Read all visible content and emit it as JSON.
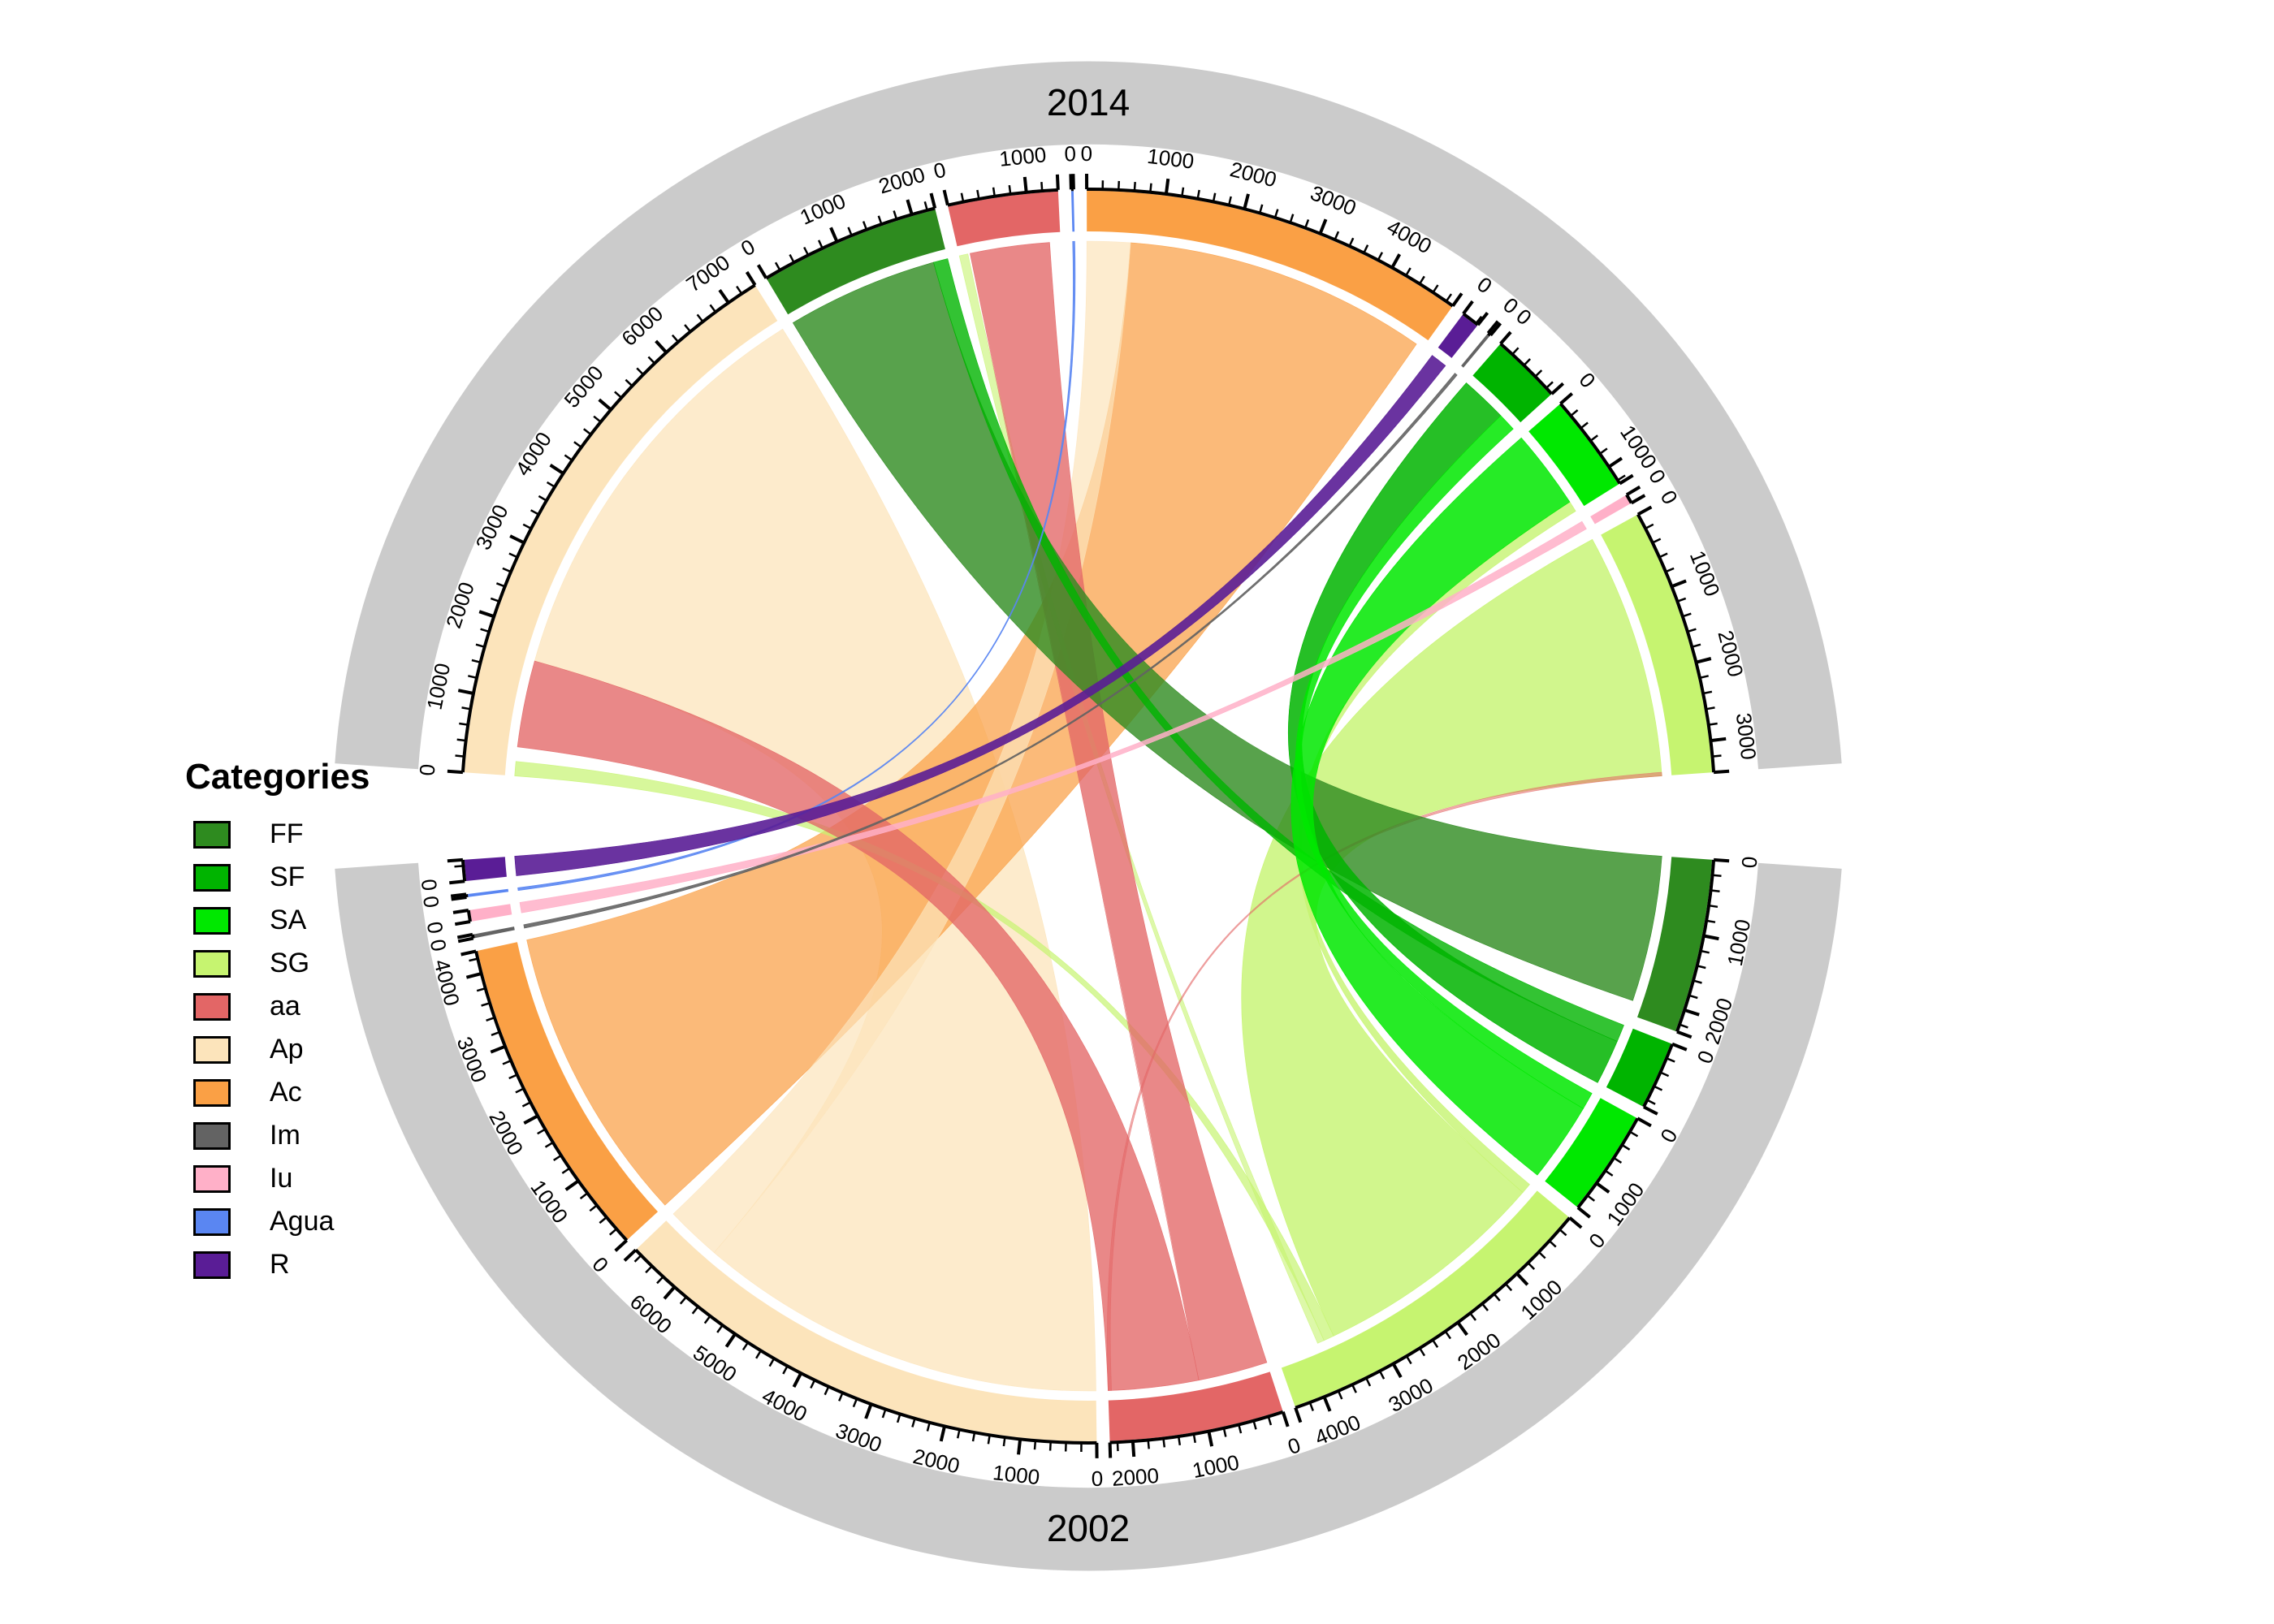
{
  "legend": {
    "title": "Categories",
    "items": [
      {
        "label": "FF",
        "color": "#2e8b1f"
      },
      {
        "label": "SF",
        "color": "#00b400"
      },
      {
        "label": "SA",
        "color": "#00e800"
      },
      {
        "label": "SG",
        "color": "#c6f470"
      },
      {
        "label": "aa",
        "color": "#e36666"
      },
      {
        "label": "Ap",
        "color": "#fce4bb"
      },
      {
        "label": "Ac",
        "color": "#faa045"
      },
      {
        "label": "Im",
        "color": "#636363"
      },
      {
        "label": "Iu",
        "color": "#ffb0c8"
      },
      {
        "label": "Agua",
        "color": "#5a86f2"
      },
      {
        "label": "R",
        "color": "#5a1d96"
      }
    ]
  },
  "chart_data": {
    "type": "chord",
    "description": "Land-cover transition chord diagram between year 2002 (bottom half) and year 2014 (top half)",
    "ring_color": "#cbcbcb",
    "axis_major_interval": 1000,
    "axis_minor_interval": 200,
    "colors": {
      "FF": "#2e8b1f",
      "SF": "#00b400",
      "SA": "#00e800",
      "SG": "#c6f470",
      "aa": "#e36666",
      "Ap": "#fce4bb",
      "Ac": "#faa045",
      "Im": "#636363",
      "Iu": "#ffb0c8",
      "Agua": "#5a86f2",
      "R": "#5a1d96"
    },
    "halves": {
      "2014": {
        "label": "2014",
        "sectors": [
          {
            "name": "Ap",
            "value": 7400
          },
          {
            "name": "FF",
            "value": 2300
          },
          {
            "name": "aa",
            "value": 1400
          },
          {
            "name": "Agua",
            "value": 30
          },
          {
            "name": "Ac",
            "value": 4900
          },
          {
            "name": "R",
            "value": 230
          },
          {
            "name": "Im",
            "value": 40
          },
          {
            "name": "SF",
            "value": 900
          },
          {
            "name": "SA",
            "value": 1250
          },
          {
            "name": "Iu",
            "value": 120
          },
          {
            "name": "SG",
            "value": 3400
          }
        ]
      },
      "2002": {
        "label": "2002",
        "sectors": [
          {
            "name": "FF",
            "value": 2300
          },
          {
            "name": "SF",
            "value": 900
          },
          {
            "name": "SA",
            "value": 1400
          },
          {
            "name": "SG",
            "value": 4400
          },
          {
            "name": "aa",
            "value": 2300
          },
          {
            "name": "Ap",
            "value": 6700
          },
          {
            "name": "Ac",
            "value": 4300
          },
          {
            "name": "Im",
            "value": 50
          },
          {
            "name": "Iu",
            "value": 150
          },
          {
            "name": "Agua",
            "value": 40
          },
          {
            "name": "R",
            "value": 280
          }
        ]
      }
    },
    "flows": [
      {
        "from": "Ap",
        "from_range": [
          0,
          5900
        ],
        "to": "Ap",
        "to_range": [
          1600,
          7400
        ],
        "opacity": 0.75
      },
      {
        "from": "Ac",
        "from_range": [
          0,
          4300
        ],
        "to": "Ac",
        "to_range": [
          600,
          4800
        ],
        "opacity": 0.72
      },
      {
        "from": "Ap",
        "from_range": [
          5900,
          6700
        ],
        "to": "Ac",
        "to_range": [
          0,
          600
        ],
        "opacity": 0.7
      },
      {
        "from": "SG",
        "from_range": [
          150,
          3550
        ],
        "to": "SG",
        "to_range": [
          0,
          3400
        ],
        "opacity": 0.8
      },
      {
        "from": "SG",
        "from_range": [
          0,
          150
        ],
        "to": "SA",
        "to_range": [
          1100,
          1250
        ],
        "opacity": 0.8
      },
      {
        "from": "SG",
        "from_range": [
          3550,
          3700
        ],
        "to": "Ap",
        "to_range": [
          0,
          200
        ],
        "opacity": 0.7
      },
      {
        "from": "SG",
        "from_range": [
          3700,
          3800
        ],
        "to": "aa",
        "to_range": [
          0,
          120
        ],
        "opacity": 0.6
      },
      {
        "from": "aa",
        "from_range": [
          1000,
          2300
        ],
        "to": "Ap",
        "to_range": [
          400,
          1600
        ],
        "opacity": 0.78
      },
      {
        "from": "aa",
        "from_range": [
          0,
          1000
        ],
        "to": "aa",
        "to_range": [
          150,
          1250
        ],
        "opacity": 0.78
      },
      {
        "from": "aa",
        "from_range": [
          2250,
          2300
        ],
        "to": "SG",
        "to_range": [
          3350,
          3400
        ],
        "opacity": 0.55
      },
      {
        "from": "FF",
        "from_range": [
          0,
          2100
        ],
        "to": "FF",
        "to_range": [
          0,
          2100
        ],
        "opacity": 0.8
      },
      {
        "from": "SF",
        "from_range": [
          0,
          250
        ],
        "to": "FF",
        "to_range": [
          2100,
          2300
        ],
        "opacity": 0.8
      },
      {
        "from": "SF",
        "from_range": [
          250,
          900
        ],
        "to": "SF",
        "to_range": [
          0,
          650
        ],
        "opacity": 0.85
      },
      {
        "from": "SA",
        "from_range": [
          0,
          250
        ],
        "to": "SF",
        "to_range": [
          650,
          900
        ],
        "opacity": 0.85
      },
      {
        "from": "SA",
        "from_range": [
          250,
          1400
        ],
        "to": "SA",
        "to_range": [
          0,
          1100
        ],
        "opacity": 0.85
      },
      {
        "from": "Iu",
        "from_range": [
          0,
          150
        ],
        "to": "Iu",
        "to_range": [
          0,
          120
        ],
        "opacity": 0.85
      },
      {
        "from": "Im",
        "from_range": [
          0,
          50
        ],
        "to": "Im",
        "to_range": [
          0,
          40
        ],
        "opacity": 0.9
      },
      {
        "from": "Agua",
        "from_range": [
          0,
          40
        ],
        "to": "Agua",
        "to_range": [
          0,
          30
        ],
        "opacity": 0.9
      },
      {
        "from": "R",
        "from_range": [
          0,
          280
        ],
        "to": "R",
        "to_range": [
          0,
          230
        ],
        "opacity": 0.9
      }
    ]
  }
}
